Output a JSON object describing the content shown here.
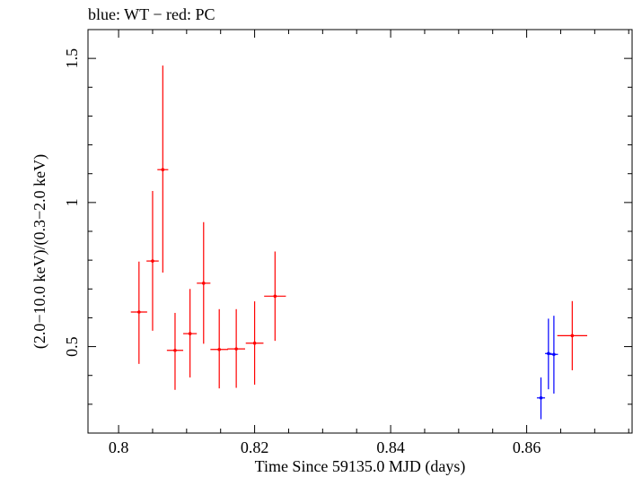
{
  "chart_data": {
    "type": "scatter",
    "title": "blue: WT − red: PC",
    "xlabel": "Time Since 59135.0 MJD (days)",
    "ylabel": "(2.0−10.0 keV)/(0.3−2.0 keV)",
    "xlim": [
      0.7955,
      0.8755
    ],
    "ylim": [
      0.2,
      1.6
    ],
    "xticks": [
      {
        "value": 0.8,
        "label": "0.8"
      },
      {
        "value": 0.82,
        "label": "0.82"
      },
      {
        "value": 0.84,
        "label": "0.84"
      },
      {
        "value": 0.86,
        "label": "0.86"
      }
    ],
    "yticks": [
      {
        "value": 0.5,
        "label": "0.5"
      },
      {
        "value": 1.0,
        "label": "1"
      },
      {
        "value": 1.5,
        "label": "1.5"
      }
    ],
    "grid": false,
    "series": [
      {
        "name": "PC",
        "color": "#ff0000",
        "points": [
          {
            "x": 0.803,
            "y": 0.62,
            "xerr": 0.0012,
            "ylo": 0.44,
            "yhi": 0.795
          },
          {
            "x": 0.805,
            "y": 0.797,
            "xerr": 0.0009,
            "ylo": 0.555,
            "yhi": 1.04
          },
          {
            "x": 0.8065,
            "y": 1.114,
            "xerr": 0.0008,
            "ylo": 0.757,
            "yhi": 1.475
          },
          {
            "x": 0.8083,
            "y": 0.487,
            "xerr": 0.0012,
            "ylo": 0.35,
            "yhi": 0.617
          },
          {
            "x": 0.8105,
            "y": 0.545,
            "xerr": 0.001,
            "ylo": 0.393,
            "yhi": 0.7
          },
          {
            "x": 0.8125,
            "y": 0.72,
            "xerr": 0.001,
            "ylo": 0.51,
            "yhi": 0.932
          },
          {
            "x": 0.8148,
            "y": 0.49,
            "xerr": 0.0013,
            "ylo": 0.355,
            "yhi": 0.63
          },
          {
            "x": 0.8173,
            "y": 0.492,
            "xerr": 0.0013,
            "ylo": 0.357,
            "yhi": 0.63
          },
          {
            "x": 0.82,
            "y": 0.512,
            "xerr": 0.0013,
            "ylo": 0.368,
            "yhi": 0.657
          },
          {
            "x": 0.823,
            "y": 0.675,
            "xerr": 0.0016,
            "ylo": 0.52,
            "yhi": 0.83
          },
          {
            "x": 0.8667,
            "y": 0.538,
            "xerr": 0.0022,
            "ylo": 0.418,
            "yhi": 0.658
          }
        ]
      },
      {
        "name": "WT",
        "color": "#0000ff",
        "points": [
          {
            "x": 0.8621,
            "y": 0.322,
            "xerr": 0.0006,
            "ylo": 0.248,
            "yhi": 0.393
          },
          {
            "x": 0.8632,
            "y": 0.476,
            "xerr": 0.0005,
            "ylo": 0.352,
            "yhi": 0.597
          },
          {
            "x": 0.864,
            "y": 0.473,
            "xerr": 0.0006,
            "ylo": 0.337,
            "yhi": 0.607
          }
        ]
      }
    ]
  }
}
